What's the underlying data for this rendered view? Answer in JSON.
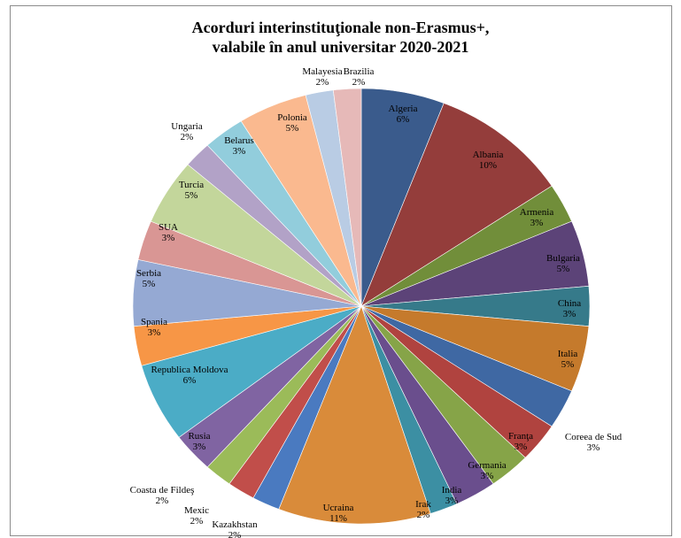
{
  "chart_data": {
    "type": "pie",
    "title": [
      "Acorduri interinstituţionale non-Erasmus+,",
      "valabile în anul universitar 2020-2021"
    ],
    "slices": [
      {
        "name": "Algeria",
        "value": 6,
        "label": "6%",
        "color": "#3a5b8c"
      },
      {
        "name": "Albania",
        "value": 10,
        "label": "10%",
        "color": "#943d3b"
      },
      {
        "name": "Armenia",
        "value": 3,
        "label": "3%",
        "color": "#718e3a"
      },
      {
        "name": "Bulgaria",
        "value": 5,
        "label": "5%",
        "color": "#5c4378"
      },
      {
        "name": "China",
        "value": 3,
        "label": "3%",
        "color": "#367a8a"
      },
      {
        "name": "Italia",
        "value": 5,
        "label": "5%",
        "color": "#c57a2c"
      },
      {
        "name": "Coreea de Sud",
        "value": 3,
        "label": "3%",
        "color": "#3f68a3"
      },
      {
        "name": "Franţa",
        "value": 3,
        "label": "3%",
        "color": "#b0433f"
      },
      {
        "name": "Germania",
        "value": 3,
        "label": "3%",
        "color": "#86a448"
      },
      {
        "name": "India",
        "value": 3,
        "label": "3%",
        "color": "#6a4e8d"
      },
      {
        "name": "Irak",
        "value": 2,
        "label": "2%",
        "color": "#3c8fa3"
      },
      {
        "name": "Ucraina",
        "value": 11,
        "label": "11%",
        "color": "#d98b3a"
      },
      {
        "name": "Kazakhstan",
        "value": 2,
        "label": "2%",
        "color": "#4a7ac0"
      },
      {
        "name": "Mexic",
        "value": 2,
        "label": "2%",
        "color": "#c14e4a"
      },
      {
        "name": "Coasta de Fildeş",
        "value": 2,
        "label": "2%",
        "color": "#9bbb59"
      },
      {
        "name": "Rusia",
        "value": 3,
        "label": "3%",
        "color": "#8064a2"
      },
      {
        "name": "Republica Moldova",
        "value": 6,
        "label": "6%",
        "color": "#4bacc6"
      },
      {
        "name": "Spania",
        "value": 3,
        "label": "3%",
        "color": "#f79646"
      },
      {
        "name": "Serbia",
        "value": 5,
        "label": "5%",
        "color": "#95a9d3"
      },
      {
        "name": "SUA",
        "value": 3,
        "label": "3%",
        "color": "#d99694"
      },
      {
        "name": "Turcia",
        "value": 5,
        "label": "5%",
        "color": "#c3d69b"
      },
      {
        "name": "Ungaria",
        "value": 2,
        "label": "2%",
        "color": "#b2a2c7"
      },
      {
        "name": "Belarus",
        "value": 3,
        "label": "3%",
        "color": "#92cddc"
      },
      {
        "name": "Polonia",
        "value": 5,
        "label": "5%",
        "color": "#fab98f"
      },
      {
        "name": "Malayesia",
        "value": 2,
        "label": "2%",
        "color": "#b9cce4"
      },
      {
        "name": "Brazilia",
        "value": 2,
        "label": "2%",
        "color": "#e6b9b8"
      }
    ],
    "start_angle": "12 o'clock",
    "direction": "clockwise",
    "legend": "none"
  }
}
